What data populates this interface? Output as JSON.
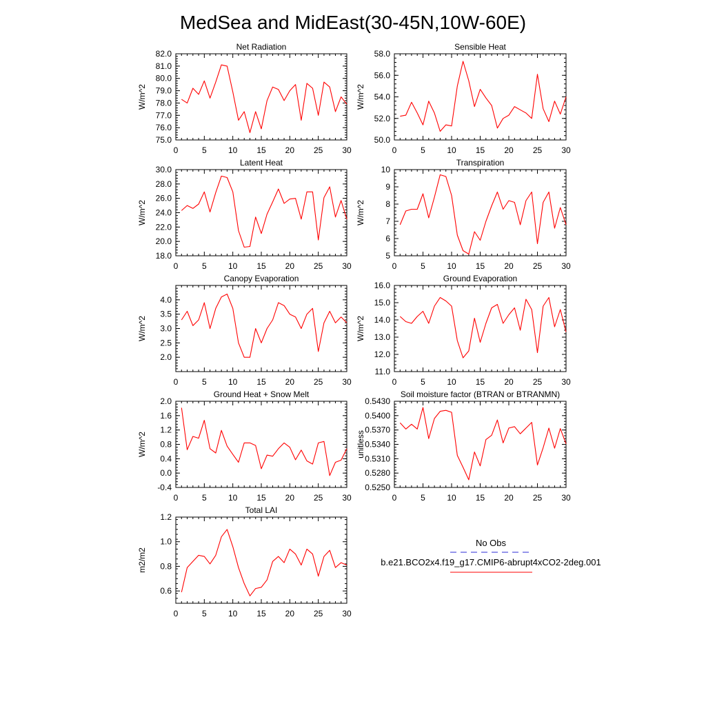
{
  "page": {
    "title": "MedSea and MidEast(30-45N,10W-60E)"
  },
  "legend": {
    "entries": [
      {
        "label": "No Obs",
        "color": "#2b2bd6",
        "dash": "dashed"
      },
      {
        "label": "b.e21.BCO2x4.f19_g17.CMIP6-abrupt4xCO2-2deg.001",
        "color": "#ff0000",
        "dash": "solid"
      }
    ]
  },
  "chart_data": [
    {
      "type": "line",
      "title": "Net Radiation",
      "xlabel": "",
      "ylabel": "W/m^2",
      "xlim": [
        0,
        30
      ],
      "ylim": [
        75,
        82
      ],
      "xticks": [
        "0",
        "5",
        "10",
        "15",
        "20",
        "25",
        "30"
      ],
      "yticks": [
        "75.0",
        "76.0",
        "77.0",
        "78.0",
        "79.0",
        "80.0",
        "81.0",
        "82.0"
      ],
      "x": [
        1,
        2,
        3,
        4,
        5,
        6,
        7,
        8,
        9,
        10,
        11,
        12,
        13,
        14,
        15,
        16,
        17,
        18,
        19,
        20,
        21,
        22,
        23,
        24,
        25,
        26,
        27,
        28,
        29,
        30
      ],
      "series": [
        {
          "color": "#ff0000",
          "values": [
            78.3,
            78.0,
            79.2,
            78.7,
            79.8,
            78.4,
            79.7,
            81.1,
            81.0,
            78.9,
            76.6,
            77.3,
            75.6,
            77.3,
            75.9,
            78.2,
            79.3,
            79.1,
            78.2,
            79.0,
            79.5,
            76.6,
            79.6,
            79.2,
            77.0,
            79.7,
            79.3,
            77.3,
            78.5,
            77.9
          ]
        }
      ]
    },
    {
      "type": "line",
      "title": "Sensible Heat",
      "xlabel": "",
      "ylabel": "W/m^2",
      "xlim": [
        0,
        30
      ],
      "ylim": [
        50,
        58
      ],
      "xticks": [
        "0",
        "5",
        "10",
        "15",
        "20",
        "25",
        "30"
      ],
      "yticks": [
        "50.0",
        "52.0",
        "54.0",
        "56.0",
        "58.0"
      ],
      "x": [
        1,
        2,
        3,
        4,
        5,
        6,
        7,
        8,
        9,
        10,
        11,
        12,
        13,
        14,
        15,
        16,
        17,
        18,
        19,
        20,
        21,
        22,
        23,
        24,
        25,
        26,
        27,
        28,
        29,
        30
      ],
      "series": [
        {
          "color": "#ff0000",
          "values": [
            52.2,
            52.3,
            53.5,
            52.5,
            51.4,
            53.6,
            52.5,
            50.8,
            51.4,
            51.3,
            55.0,
            57.3,
            55.5,
            53.1,
            54.7,
            53.9,
            53.2,
            51.1,
            52.0,
            52.3,
            53.1,
            52.8,
            52.5,
            52.0,
            56.1,
            52.9,
            51.7,
            53.6,
            52.4,
            54.0
          ]
        }
      ]
    },
    {
      "type": "line",
      "title": "Latent Heat",
      "xlabel": "",
      "ylabel": "W/m^2",
      "xlim": [
        0,
        30
      ],
      "ylim": [
        18,
        30
      ],
      "xticks": [
        "0",
        "5",
        "10",
        "15",
        "20",
        "25",
        "30"
      ],
      "yticks": [
        "18.0",
        "20.0",
        "22.0",
        "24.0",
        "26.0",
        "28.0",
        "30.0"
      ],
      "x": [
        1,
        2,
        3,
        4,
        5,
        6,
        7,
        8,
        9,
        10,
        11,
        12,
        13,
        14,
        15,
        16,
        17,
        18,
        19,
        20,
        21,
        22,
        23,
        24,
        25,
        26,
        27,
        28,
        29,
        30
      ],
      "series": [
        {
          "color": "#ff0000",
          "values": [
            24.3,
            25.0,
            24.6,
            25.2,
            26.9,
            24.1,
            26.8,
            29.1,
            28.9,
            26.9,
            21.5,
            19.2,
            19.3,
            23.4,
            21.1,
            23.8,
            25.5,
            27.3,
            25.3,
            25.9,
            26.0,
            23.1,
            26.9,
            26.9,
            20.2,
            26.1,
            27.6,
            23.4,
            25.7,
            23.1
          ]
        }
      ]
    },
    {
      "type": "line",
      "title": "Transpiration",
      "xlabel": "",
      "ylabel": "W/m^2",
      "xlim": [
        0,
        30
      ],
      "ylim": [
        5,
        10
      ],
      "xticks": [
        "0",
        "5",
        "10",
        "15",
        "20",
        "25",
        "30"
      ],
      "yticks": [
        "5",
        "6",
        "7",
        "8",
        "9",
        "10"
      ],
      "x": [
        1,
        2,
        3,
        4,
        5,
        6,
        7,
        8,
        9,
        10,
        11,
        12,
        13,
        14,
        15,
        16,
        17,
        18,
        19,
        20,
        21,
        22,
        23,
        24,
        25,
        26,
        27,
        28,
        29,
        30
      ],
      "series": [
        {
          "color": "#ff0000",
          "values": [
            6.8,
            7.6,
            7.7,
            7.7,
            8.6,
            7.2,
            8.4,
            9.7,
            9.6,
            8.5,
            6.2,
            5.3,
            5.1,
            6.4,
            5.9,
            7.0,
            7.9,
            8.7,
            7.7,
            8.2,
            8.1,
            6.8,
            8.2,
            8.7,
            5.7,
            8.1,
            8.7,
            6.6,
            7.8,
            6.8
          ]
        }
      ]
    },
    {
      "type": "line",
      "title": "Canopy Evaporation",
      "xlabel": "",
      "ylabel": "W/m^2",
      "xlim": [
        0,
        30
      ],
      "ylim": [
        1.5,
        4.5
      ],
      "xticks": [
        "0",
        "5",
        "10",
        "15",
        "20",
        "25",
        "30"
      ],
      "yticks": [
        "2.0",
        "2.5",
        "3.0",
        "3.5",
        "4.0"
      ],
      "x": [
        1,
        2,
        3,
        4,
        5,
        6,
        7,
        8,
        9,
        10,
        11,
        12,
        13,
        14,
        15,
        16,
        17,
        18,
        19,
        20,
        21,
        22,
        23,
        24,
        25,
        26,
        27,
        28,
        29,
        30
      ],
      "series": [
        {
          "color": "#ff0000",
          "values": [
            3.3,
            3.6,
            3.1,
            3.3,
            3.9,
            3.0,
            3.7,
            4.1,
            4.2,
            3.7,
            2.5,
            2.0,
            2.0,
            3.0,
            2.5,
            3.0,
            3.3,
            3.9,
            3.8,
            3.5,
            3.4,
            3.0,
            3.5,
            3.7,
            2.2,
            3.2,
            3.6,
            3.2,
            3.4,
            3.2
          ]
        }
      ]
    },
    {
      "type": "line",
      "title": "Ground Evaporation",
      "xlabel": "",
      "ylabel": "W/m^2",
      "xlim": [
        0,
        30
      ],
      "ylim": [
        11,
        16
      ],
      "xticks": [
        "0",
        "5",
        "10",
        "15",
        "20",
        "25",
        "30"
      ],
      "yticks": [
        "11.0",
        "12.0",
        "13.0",
        "14.0",
        "15.0",
        "16.0"
      ],
      "x": [
        1,
        2,
        3,
        4,
        5,
        6,
        7,
        8,
        9,
        10,
        11,
        12,
        13,
        14,
        15,
        16,
        17,
        18,
        19,
        20,
        21,
        22,
        23,
        24,
        25,
        26,
        27,
        28,
        29,
        30
      ],
      "series": [
        {
          "color": "#ff0000",
          "values": [
            14.2,
            13.9,
            13.8,
            14.2,
            14.5,
            13.8,
            14.8,
            15.3,
            15.1,
            14.8,
            12.8,
            11.8,
            12.2,
            14.1,
            12.7,
            13.8,
            14.7,
            14.9,
            13.8,
            14.3,
            14.7,
            13.4,
            15.2,
            14.6,
            12.1,
            14.8,
            15.3,
            13.6,
            14.6,
            13.3
          ]
        }
      ]
    },
    {
      "type": "line",
      "title": "Ground Heat + Snow Melt",
      "xlabel": "",
      "ylabel": "W/m^2",
      "xlim": [
        0,
        30
      ],
      "ylim": [
        -0.4,
        2.0
      ],
      "xticks": [
        "0",
        "5",
        "10",
        "15",
        "20",
        "25",
        "30"
      ],
      "yticks": [
        "-0.4",
        "0.0",
        "0.4",
        "0.8",
        "1.2",
        "1.6",
        "2.0"
      ],
      "x": [
        1,
        2,
        3,
        4,
        5,
        6,
        7,
        8,
        9,
        10,
        11,
        12,
        13,
        14,
        15,
        16,
        17,
        18,
        19,
        20,
        21,
        22,
        23,
        24,
        25,
        26,
        27,
        28,
        29,
        30
      ],
      "series": [
        {
          "color": "#ff0000",
          "values": [
            1.82,
            0.65,
            1.02,
            0.97,
            1.47,
            0.68,
            0.56,
            1.19,
            0.75,
            0.52,
            0.3,
            0.84,
            0.84,
            0.77,
            0.12,
            0.5,
            0.47,
            0.68,
            0.84,
            0.72,
            0.37,
            0.64,
            0.34,
            0.25,
            0.84,
            0.88,
            -0.07,
            0.3,
            0.36,
            0.68
          ]
        }
      ]
    },
    {
      "type": "line",
      "title": "Soil moisture factor (BTRAN or BTRANMN)",
      "xlabel": "",
      "ylabel": "unitless",
      "xlim": [
        0,
        30
      ],
      "ylim": [
        0.525,
        0.543
      ],
      "xticks": [
        "0",
        "5",
        "10",
        "15",
        "20",
        "25",
        "30"
      ],
      "yticks": [
        "0.5250",
        "0.5280",
        "0.5310",
        "0.5340",
        "0.5370",
        "0.5400",
        "0.5430"
      ],
      "x": [
        1,
        2,
        3,
        4,
        5,
        6,
        7,
        8,
        9,
        10,
        11,
        12,
        13,
        14,
        15,
        16,
        17,
        18,
        19,
        20,
        21,
        22,
        23,
        24,
        25,
        26,
        27,
        28,
        29,
        30
      ],
      "series": [
        {
          "color": "#ff0000",
          "values": [
            0.5385,
            0.5372,
            0.5382,
            0.5372,
            0.5417,
            0.5352,
            0.5394,
            0.5409,
            0.5411,
            0.5407,
            0.5317,
            0.5292,
            0.5266,
            0.5324,
            0.5295,
            0.535,
            0.5359,
            0.5391,
            0.5343,
            0.5374,
            0.5377,
            0.5362,
            0.5374,
            0.5386,
            0.5297,
            0.5333,
            0.5374,
            0.5332,
            0.5373,
            0.5341
          ]
        }
      ]
    },
    {
      "type": "line",
      "title": "Total LAI",
      "xlabel": "",
      "ylabel": "m2/m2",
      "xlim": [
        0,
        30
      ],
      "ylim": [
        0.5,
        1.2
      ],
      "xticks": [
        "0",
        "5",
        "10",
        "15",
        "20",
        "25",
        "30"
      ],
      "yticks": [
        "0.6",
        "0.8",
        "1.0",
        "1.2"
      ],
      "x": [
        1,
        2,
        3,
        4,
        5,
        6,
        7,
        8,
        9,
        10,
        11,
        12,
        13,
        14,
        15,
        16,
        17,
        18,
        19,
        20,
        21,
        22,
        23,
        24,
        25,
        26,
        27,
        28,
        29,
        30
      ],
      "series": [
        {
          "color": "#ff0000",
          "values": [
            0.59,
            0.79,
            0.84,
            0.89,
            0.88,
            0.82,
            0.89,
            1.04,
            1.1,
            0.96,
            0.79,
            0.66,
            0.56,
            0.62,
            0.63,
            0.69,
            0.84,
            0.88,
            0.83,
            0.94,
            0.9,
            0.81,
            0.94,
            0.9,
            0.72,
            0.88,
            0.93,
            0.79,
            0.83,
            0.81
          ]
        }
      ]
    }
  ]
}
